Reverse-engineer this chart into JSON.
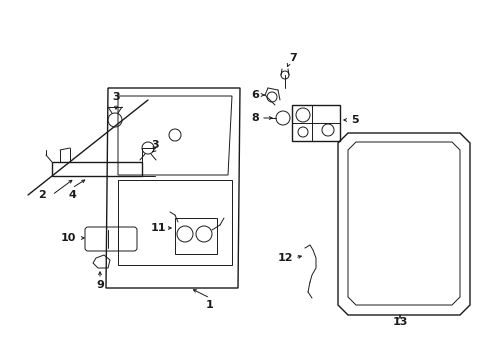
{
  "bg_color": "#ffffff",
  "line_color": "#1a1a1a",
  "text_color": "#1a1a1a",
  "figsize": [
    4.89,
    3.6
  ],
  "dpi": 100
}
